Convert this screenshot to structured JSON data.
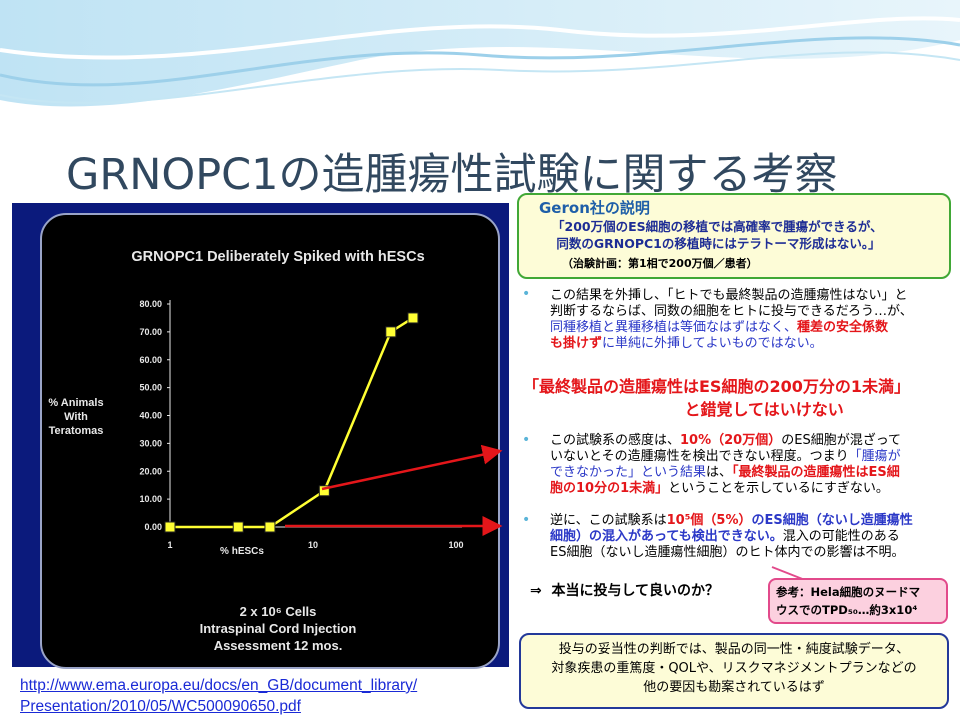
{
  "title": "GRNOPC1の造腫瘍性試験に関する考察",
  "chart": {
    "heading": "GRNOPC1 Deliberately Spiked with hESCs",
    "ylabel": [
      "% Animals",
      "With",
      "Teratomas"
    ],
    "xlabel": "% hESCs",
    "caption_lines": [
      "2 x 10⁶ Cells",
      "Intraspinal Cord Injection",
      "Assessment 12 mos."
    ],
    "colors": {
      "line": "#ffff33",
      "marker_edge": "#222222",
      "text": "#e8e8e8",
      "panel": "#0b1a7c"
    }
  },
  "chart_data": {
    "type": "line",
    "title": "GRNOPC1 Deliberately Spiked with hESCs",
    "xlabel": "% hESCs",
    "ylabel": "% Animals With Teratomas",
    "x_scale": "log",
    "x_ticks": [
      "1",
      "10",
      "100"
    ],
    "y_ticks": [
      "0.00",
      "10.00",
      "20.00",
      "30.00",
      "40.00",
      "50.00",
      "60.00",
      "70.00",
      "80.00"
    ],
    "ylim": [
      0,
      80
    ],
    "series": [
      {
        "x": [
          1,
          3,
          5,
          12,
          35,
          50
        ],
        "y": [
          0,
          0,
          0,
          13,
          70,
          75
        ]
      }
    ]
  },
  "source_link": {
    "line1": "http://www.ema.europa.eu/docs/en_GB/document_library/",
    "line2": "Presentation/2010/05/WC500090650.pdf"
  },
  "geron": {
    "title": "Geron社の説明",
    "quote": "「200万個のES細胞の移植では高確率で腫瘍ができるが、\n 同数のGRNOPC1の移植時にはテラトーマ形成はない。」",
    "note": "（治験計画：第1相で200万個／患者）"
  },
  "bullet1": {
    "normal": "この結果を外挿し、「ヒトでも最終製品の造腫瘍性はない」と\n判断するならば、同数の細胞をヒトに投与できるだろう…が、\n",
    "blue": "同種移植と異種移植は等価なはずはなく、",
    "red": "種差の安全係数",
    "red2": "も掛けず",
    "blue2": "に単純に外挿してよいものではない。"
  },
  "warning": "「最終製品の造腫瘍性はES細胞の200万分の1未満」\n                             と錯覚してはいけない",
  "bullet2": {
    "l1a": "この試験系の感度は、",
    "l1red": "10%（20万個）",
    "l1b": "のES細胞が混ざって",
    "l2": "いないとその造腫瘍性を検出できない程度。つまり",
    "l2blue": "「腫瘍が",
    "l3blue": "できなかった」という結果",
    "l3": "は、",
    "l3red": "「最終製品の造腫瘍性はES細",
    "l4red": "胞の10分の1未満」",
    "l4": "ということを示しているにすぎない。"
  },
  "bullet3": {
    "l1a": "逆に、この試験系は",
    "l1red": "10⁵個（5%）",
    "l1blue": "のES細胞（ないし造腫瘍性",
    "l2blue": "細胞）の混入があっても検出できない。",
    "l2": "混入の可能性のある",
    "l3": "ES細胞（ないし造腫瘍性細胞）のヒト体内での影響は不明。"
  },
  "question": "⇒  本当に投与して良いのか？",
  "reference": "参考：Hela細胞のヌードマ\nウスでのTPD₅₀…約3x10⁴",
  "bottom_note": "投与の妥当性の判断では、製品の同一性・純度試験データ、\n対象疾患の重篤度・QOLや、リスクマネジメントプランなどの\n他の要因も勘案されているはず",
  "bullet_glyph": "•"
}
